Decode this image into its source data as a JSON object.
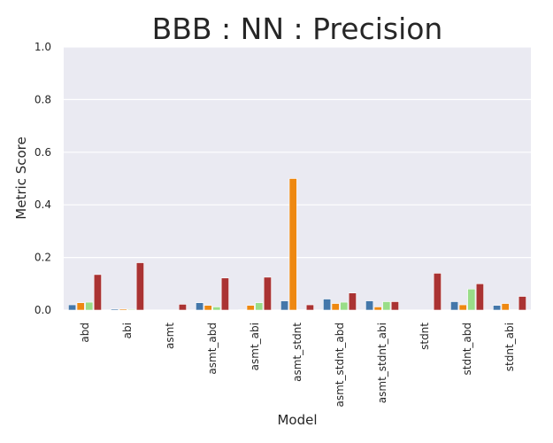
{
  "chart_data": {
    "type": "bar",
    "title": "BBB : NN : Precision",
    "xlabel": "Model",
    "ylabel": "Metric Score",
    "ylim": [
      0,
      1.0
    ],
    "yticks": [
      "0.0",
      "0.2",
      "0.4",
      "0.6",
      "0.8",
      "1.0"
    ],
    "grid": true,
    "categories": [
      "abd",
      "abi",
      "asmt",
      "asmt_abd",
      "asmt_abi",
      "asmt_stdnt",
      "asmt_stdnt_abd",
      "asmt_stdnt_abi",
      "stdnt",
      "stdnt_abd",
      "stdnt_abi"
    ],
    "series": [
      {
        "color": "#4477aa",
        "values": [
          0.02,
          0.004,
          0.0,
          0.028,
          0.002,
          0.035,
          0.042,
          0.035,
          0.0,
          0.032,
          0.018
        ]
      },
      {
        "color": "#ee8811",
        "values": [
          0.028,
          0.004,
          0.0,
          0.018,
          0.018,
          0.5,
          0.025,
          0.012,
          0.0,
          0.02,
          0.025
        ]
      },
      {
        "color": "#99dd88",
        "values": [
          0.03,
          0.003,
          0.0,
          0.012,
          0.028,
          0.002,
          0.03,
          0.032,
          0.0,
          0.08,
          0.002
        ]
      },
      {
        "color": "#aa3333",
        "values": [
          0.135,
          0.18,
          0.022,
          0.122,
          0.125,
          0.02,
          0.065,
          0.032,
          0.14,
          0.1,
          0.052
        ]
      }
    ],
    "colors": {
      "plot_bg": "#eaeaf2",
      "grid": "#ffffff"
    }
  }
}
